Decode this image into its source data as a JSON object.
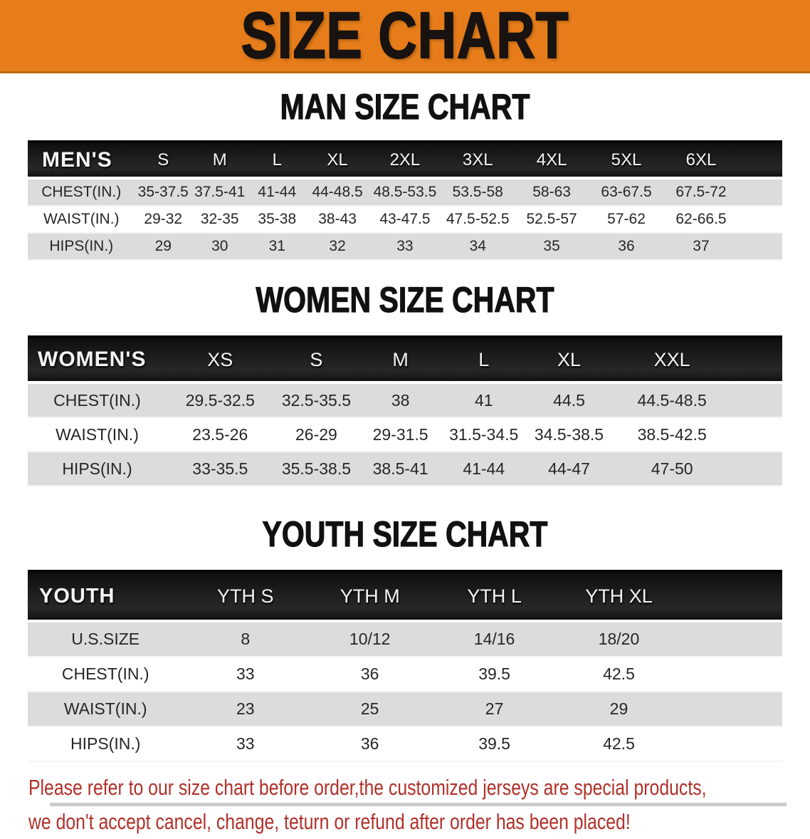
{
  "banner": {
    "title": "SIZE CHART"
  },
  "sections": [
    {
      "title": "MAN SIZE CHART",
      "table": {
        "header_label": "MEN'S",
        "columns": [
          "S",
          "M",
          "L",
          "XL",
          "2XL",
          "3XL",
          "4XL",
          "5XL",
          "6XL"
        ],
        "rows": [
          {
            "label": "CHEST(IN.)",
            "values": [
              "35-37.5",
              "37.5-41",
              "41-44",
              "44-48.5",
              "48.5-53.5",
              "53.5-58",
              "58-63",
              "63-67.5",
              "67.5-72"
            ]
          },
          {
            "label": "WAIST(IN.)",
            "values": [
              "29-32",
              "32-35",
              "35-38",
              "38-43",
              "43-47.5",
              "47.5-52.5",
              "52.5-57",
              "57-62",
              "62-66.5"
            ]
          },
          {
            "label": "HIPS(IN.)",
            "values": [
              "29",
              "30",
              "31",
              "32",
              "33",
              "34",
              "35",
              "36",
              "37"
            ]
          }
        ]
      }
    },
    {
      "title": "WOMEN SIZE CHART",
      "table": {
        "header_label": "WOMEN'S",
        "columns": [
          "XS",
          "S",
          "M",
          "L",
          "XL",
          "XXL"
        ],
        "rows": [
          {
            "label": "CHEST(IN.)",
            "values": [
              "29.5-32.5",
              "32.5-35.5",
              "38",
              "41",
              "44.5",
              "44.5-48.5"
            ]
          },
          {
            "label": "WAIST(IN.)",
            "values": [
              "23.5-26",
              "26-29",
              "29-31.5",
              "31.5-34.5",
              "34.5-38.5",
              "38.5-42.5"
            ]
          },
          {
            "label": "HIPS(IN.)",
            "values": [
              "33-35.5",
              "35.5-38.5",
              "38.5-41",
              "41-44",
              "44-47",
              "47-50"
            ]
          }
        ]
      }
    },
    {
      "title": "YOUTH SIZE CHART",
      "table": {
        "header_label": "YOUTH",
        "columns": [
          "YTH S",
          "YTH M",
          "YTH L",
          "YTH XL"
        ],
        "rows": [
          {
            "label": "U.S.SIZE",
            "values": [
              "8",
              "10/12",
              "14/16",
              "18/20"
            ]
          },
          {
            "label": "CHEST(IN.)",
            "values": [
              "33",
              "36",
              "39.5",
              "42.5"
            ]
          },
          {
            "label": "WAIST(IN.)",
            "values": [
              "23",
              "25",
              "27",
              "29"
            ]
          },
          {
            "label": "HIPS(IN.)",
            "values": [
              "33",
              "36",
              "39.5",
              "42.5"
            ]
          }
        ]
      }
    }
  ],
  "disclaimer": {
    "line1": "Please refer to our size chart before order,the customized jerseys are special products,",
    "line2": "we don't accept cancel, change, teturn or refund after order has been placed!"
  },
  "colors": {
    "banner_orange": "#e67d1a",
    "table_header_black": "#191919",
    "row_shade_gray": "#dcdcdc",
    "disclaimer_red": "#b13029"
  }
}
